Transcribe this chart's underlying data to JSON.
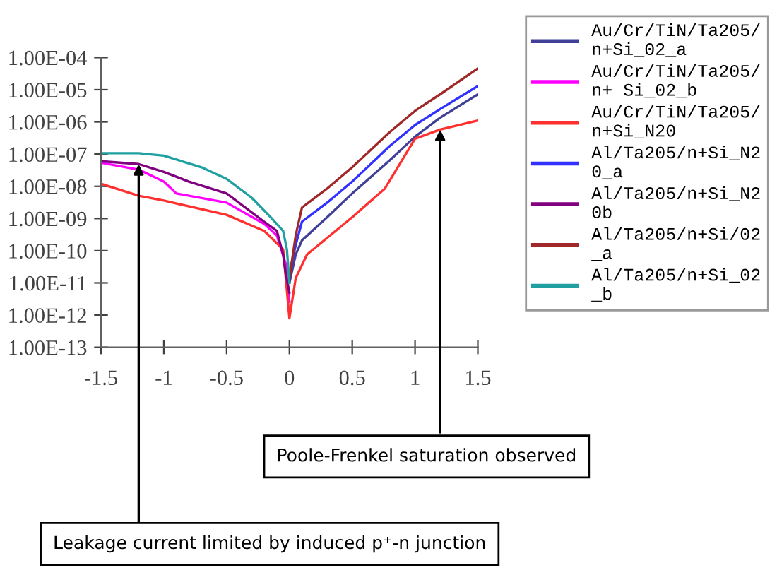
{
  "chart_data": {
    "type": "line",
    "log": "y",
    "grid": false,
    "legend": "right",
    "marker": "none",
    "line_style": "solid",
    "xlim": [
      -1.5,
      1.5
    ],
    "xticks": [
      -1.5,
      -1,
      -0.5,
      0,
      0.5,
      1,
      1.5
    ],
    "ylim": [
      1e-13,
      0.0001
    ],
    "yticks": [
      {
        "value": 1e-13,
        "label": "1.00E-13"
      },
      {
        "value": 1e-12,
        "label": "1.00E-12"
      },
      {
        "value": 1e-11,
        "label": "1.00E-11"
      },
      {
        "value": 1e-10,
        "label": "1.00E-10"
      },
      {
        "value": 1e-09,
        "label": "1.00E-09"
      },
      {
        "value": 1e-08,
        "label": "1.00E-08"
      },
      {
        "value": 1e-07,
        "label": "1.00E-07"
      },
      {
        "value": 1e-06,
        "label": "1.00E-06"
      },
      {
        "value": 1e-05,
        "label": "1.00E-05"
      },
      {
        "value": 0.0001,
        "label": "1.00E-04"
      }
    ],
    "series": [
      {
        "name": "Au/Cr/TiN/Ta205/n+Si_02_a",
        "color": "#404098",
        "x": [
          0,
          0.05,
          0.1,
          0.3,
          0.5,
          0.8,
          1.0,
          1.2,
          1.5
        ],
        "values": [
          1e-11,
          7.6e-11,
          2.1e-10,
          1.1e-09,
          6e-09,
          6.5e-08,
          3.5e-07,
          1.35e-06,
          7.2e-06
        ]
      },
      {
        "name": "Au/Cr/TiN/Ta205/n+ Si_02_b",
        "color": "#ff00ff",
        "x": [
          -1.5,
          -1.2,
          -1.0,
          -0.9,
          -0.5,
          -0.2,
          -0.1,
          -0.03,
          0
        ],
        "values": [
          5.4e-08,
          3.3e-08,
          1.4e-08,
          6e-09,
          3.1e-09,
          6.8e-10,
          3e-10,
          4e-11,
          2.6e-12
        ]
      },
      {
        "name": "Au/Cr/TiN/Ta205/n+Si_N20",
        "color": "#ff3030",
        "x": [
          -1.5,
          -1.2,
          -1.0,
          -0.5,
          -0.2,
          -0.05,
          0,
          0.05,
          0.14,
          0.5,
          0.76,
          1.0,
          1.2,
          1.5
        ],
        "values": [
          1.2e-08,
          5.1e-09,
          3.6e-09,
          1.3e-09,
          4.1e-10,
          1.1e-10,
          8e-13,
          1.4e-11,
          7.6e-11,
          1.1e-09,
          8.5e-09,
          3e-07,
          5.8e-07,
          1.1e-06
        ]
      },
      {
        "name": "Al/Ta205/n+Si_N20_a",
        "color": "#3030ff",
        "x": [
          0,
          0.05,
          0.1,
          0.3,
          0.5,
          0.8,
          1.0,
          1.2,
          1.5
        ],
        "values": [
          2e-11,
          1.5e-10,
          8e-10,
          3.1e-09,
          1.4e-08,
          1.8e-07,
          8e-07,
          2.5e-06,
          1.3e-05
        ]
      },
      {
        "name": "Al/Ta205/n+Si_N20b",
        "color": "#800080",
        "x": [
          -1.5,
          -1.2,
          -1.0,
          -0.8,
          -0.5,
          -0.2,
          -0.1,
          -0.05,
          -0.03,
          0
        ],
        "values": [
          6e-08,
          4.9e-08,
          2.8e-08,
          1.4e-08,
          6e-09,
          7.9e-10,
          4.1e-10,
          7.6e-11,
          2e-11,
          5e-12
        ]
      },
      {
        "name": "Al/Ta205/n+Si/02_a",
        "color": "#a02828",
        "x": [
          0,
          0.05,
          0.1,
          0.3,
          0.5,
          0.8,
          1.0,
          1.2,
          1.5
        ],
        "values": [
          1.4e-11,
          3e-10,
          2.2e-09,
          8.5e-09,
          3.9e-08,
          4.9e-07,
          2.2e-06,
          7.2e-06,
          4.6e-05
        ]
      },
      {
        "name": "Al/Ta205/n+Si_02_b",
        "color": "#20a0a0",
        "x": [
          -1.5,
          -1.2,
          -1.0,
          -0.7,
          -0.5,
          -0.3,
          -0.15,
          -0.05,
          -0.02,
          0
        ],
        "values": [
          1.07e-07,
          1.07e-07,
          8.9e-08,
          3.9e-08,
          1.7e-08,
          4.4e-09,
          1.1e-09,
          4.1e-10,
          1.1e-10,
          1e-11
        ]
      }
    ],
    "annotations": [
      {
        "text": "Poole-Frenkel saturation observed",
        "x": 1.2,
        "y": 5.8e-07
      },
      {
        "text": "Leakage current limited by induced p⁺-n junction",
        "x": -1.2,
        "y": 4.9e-08
      }
    ]
  }
}
